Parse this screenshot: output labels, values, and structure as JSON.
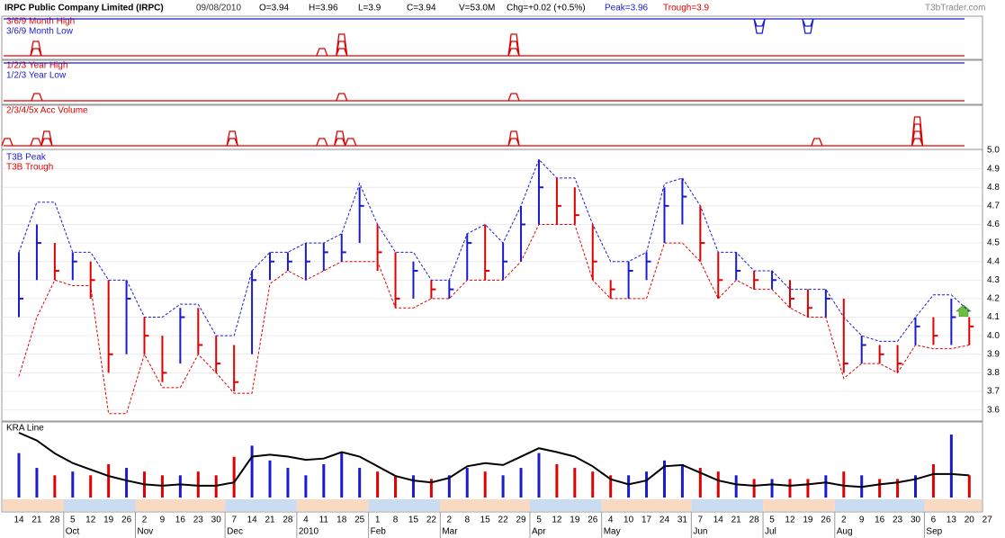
{
  "header": {
    "title": "IRPC Public Company Limited (IRPC)",
    "date": "09/08/2010",
    "open": "O=3.94",
    "high": "H=3.96",
    "low": "L=3.9",
    "close": "C=3.94",
    "volume": "V=53.0M",
    "change": "Chg=+0.02 (+0.5%)",
    "peak": "Peak=3.96",
    "trough": "Trough=3.9",
    "site": "T3bTrader.com"
  },
  "chart_data": [
    {
      "type": "signal",
      "series": [
        {
          "name": "3/6/9 Month High",
          "color": "#e00000",
          "direction": "up",
          "x": [
            0.95,
            16.9,
            18.0,
            27.6
          ],
          "values": [
            2,
            1,
            3,
            3
          ]
        },
        {
          "name": "3/6/9 Month Low",
          "color": "#1a1ad0",
          "direction": "down",
          "x": [
            41.3,
            44.0
          ],
          "values": [
            2,
            2
          ]
        }
      ]
    },
    {
      "type": "signal",
      "series": [
        {
          "name": "1/2/3 Year High",
          "color": "#e00000",
          "direction": "up",
          "x": [
            1.0,
            18.0,
            27.6
          ],
          "values": [
            1,
            1,
            1
          ]
        },
        {
          "name": "1/2/3 Year Low",
          "color": "#1a1ad0",
          "direction": "down",
          "x": [],
          "values": []
        }
      ]
    },
    {
      "type": "signal",
      "series": [
        {
          "name": "2/3/4/5x Acc Volume",
          "color": "#e00000",
          "direction": "up",
          "x": [
            -0.65,
            0.95,
            1.55,
            11.9,
            16.9,
            17.9,
            18.5,
            27.6,
            44.5,
            50.1
          ],
          "values": [
            1,
            1,
            2,
            2,
            1,
            2,
            1,
            2,
            1,
            4
          ]
        }
      ]
    },
    {
      "type": "ohlc",
      "categories": [
        "14",
        "21",
        "28",
        "5",
        "12",
        "19",
        "26",
        "2",
        "9",
        "16",
        "23",
        "30",
        "7",
        "14",
        "21",
        "28",
        "4",
        "11",
        "18",
        "25",
        "1",
        "8",
        "15",
        "22",
        "2",
        "8",
        "15",
        "22",
        "29",
        "5",
        "12",
        "19",
        "26",
        "4",
        "10",
        "17",
        "24",
        "31",
        "7",
        "14",
        "21",
        "28",
        "5",
        "12",
        "19",
        "26",
        "2",
        "9",
        "16",
        "23",
        "30",
        "6",
        "13",
        "20",
        "27"
      ],
      "months": [
        {
          "label": "Oct",
          "start": 3
        },
        {
          "label": "Nov",
          "start": 7
        },
        {
          "label": "Dec",
          "start": 12
        },
        {
          "label": "2010",
          "start": 16
        },
        {
          "label": "Feb",
          "start": 20
        },
        {
          "label": "Mar",
          "start": 24
        },
        {
          "label": "Apr",
          "start": 29
        },
        {
          "label": "May",
          "start": 33
        },
        {
          "label": "Jun",
          "start": 38
        },
        {
          "label": "Jul",
          "start": 42
        },
        {
          "label": "Aug",
          "start": 46
        },
        {
          "label": "Sep",
          "start": 51
        }
      ],
      "high": [
        4.45,
        4.6,
        4.5,
        4.45,
        4.4,
        4.3,
        4.3,
        4.1,
        4.0,
        4.15,
        4.15,
        4.0,
        3.95,
        4.35,
        4.45,
        4.45,
        4.5,
        4.5,
        4.55,
        4.8,
        4.6,
        4.45,
        4.4,
        4.3,
        4.3,
        4.55,
        4.6,
        4.5,
        4.7,
        4.95,
        4.85,
        4.8,
        4.6,
        4.3,
        4.4,
        4.45,
        4.8,
        4.85,
        4.7,
        4.45,
        4.45,
        4.35,
        4.35,
        4.3,
        4.25,
        4.25,
        4.2,
        4.0,
        3.95,
        3.95,
        4.1,
        4.1,
        4.2,
        4.1,
        null
      ],
      "low": [
        4.1,
        4.3,
        4.3,
        4.3,
        4.2,
        3.8,
        3.9,
        3.9,
        3.75,
        3.85,
        3.9,
        3.8,
        3.7,
        3.9,
        4.3,
        4.35,
        4.3,
        4.35,
        4.4,
        4.5,
        4.35,
        4.15,
        4.2,
        4.2,
        4.2,
        4.3,
        4.3,
        4.3,
        4.4,
        4.6,
        4.6,
        4.6,
        4.3,
        4.2,
        4.2,
        4.3,
        4.5,
        4.6,
        4.4,
        4.2,
        4.3,
        4.25,
        4.25,
        4.15,
        4.1,
        4.1,
        3.8,
        3.85,
        3.85,
        3.8,
        3.95,
        3.95,
        3.95,
        3.95,
        null
      ],
      "close": [
        4.2,
        4.5,
        4.35,
        4.4,
        4.3,
        3.9,
        4.2,
        4.0,
        3.8,
        4.1,
        3.95,
        3.85,
        3.75,
        4.3,
        4.4,
        4.4,
        4.4,
        4.45,
        4.45,
        4.7,
        4.45,
        4.2,
        4.35,
        4.25,
        4.25,
        4.5,
        4.35,
        4.4,
        4.6,
        4.8,
        4.7,
        4.65,
        4.4,
        4.25,
        4.35,
        4.4,
        4.7,
        4.75,
        4.5,
        4.3,
        4.35,
        4.3,
        4.3,
        4.2,
        4.15,
        4.2,
        3.85,
        3.95,
        3.9,
        3.85,
        4.05,
        4.0,
        4.1,
        4.05,
        null
      ],
      "up_color": "#1a1ad0",
      "down_color": "#e00000",
      "series": [
        {
          "name": "T3B Peak",
          "color": "#1a1ad0",
          "values": [
            4.45,
            4.72,
            4.72,
            4.45,
            4.45,
            4.3,
            4.3,
            4.1,
            4.1,
            4.17,
            4.17,
            4.0,
            4.0,
            4.35,
            4.45,
            4.45,
            4.5,
            4.5,
            4.55,
            4.82,
            4.6,
            4.45,
            4.45,
            4.3,
            4.3,
            4.55,
            4.6,
            4.5,
            4.7,
            4.95,
            4.85,
            4.85,
            4.6,
            4.4,
            4.4,
            4.45,
            4.82,
            4.85,
            4.7,
            4.45,
            4.45,
            4.35,
            4.35,
            4.25,
            4.25,
            4.25,
            4.1,
            4.0,
            3.97,
            3.97,
            4.1,
            4.22,
            4.22,
            4.13,
            null
          ]
        },
        {
          "name": "T3B Trough",
          "color": "#e00000",
          "values": [
            3.78,
            4.1,
            4.3,
            4.27,
            4.27,
            3.58,
            3.58,
            3.9,
            3.72,
            3.72,
            3.9,
            3.8,
            3.69,
            3.69,
            4.28,
            4.35,
            4.3,
            4.35,
            4.4,
            4.4,
            4.4,
            4.15,
            4.15,
            4.2,
            4.2,
            4.3,
            4.3,
            4.3,
            4.4,
            4.6,
            4.6,
            4.6,
            4.3,
            4.2,
            4.2,
            4.2,
            4.5,
            4.5,
            4.4,
            4.2,
            4.3,
            4.25,
            4.25,
            4.15,
            4.1,
            4.1,
            3.77,
            3.85,
            3.85,
            3.8,
            3.95,
            3.93,
            3.93,
            3.95,
            null
          ]
        }
      ],
      "ylim": [
        3.54,
        5.0
      ],
      "yticks": [
        3.6,
        3.7,
        3.8,
        3.9,
        {
          "value": 4,
          "label": "4.0"
        },
        4.1,
        4.2,
        4.3,
        4.4,
        4.5,
        4.6,
        4.7,
        4.8,
        4.9,
        {
          "value": 5,
          "label": "5.0"
        }
      ],
      "grid": true
    },
    {
      "type": "volume",
      "values": [
        60,
        40,
        30,
        35,
        30,
        45,
        40,
        35,
        30,
        30,
        35,
        30,
        55,
        70,
        50,
        40,
        30,
        45,
        60,
        40,
        35,
        30,
        30,
        25,
        30,
        40,
        35,
        30,
        40,
        60,
        45,
        40,
        35,
        30,
        30,
        35,
        50,
        45,
        40,
        35,
        30,
        25,
        25,
        25,
        25,
        30,
        35,
        30,
        25,
        25,
        30,
        45,
        85,
        30,
        null
      ],
      "line": {
        "name": "KRA Line",
        "color": "#000000",
        "values": [
          92,
          80,
          60,
          45,
          35,
          25,
          18,
          12,
          10,
          12,
          10,
          10,
          15,
          55,
          58,
          55,
          50,
          52,
          62,
          55,
          40,
          25,
          18,
          15,
          22,
          40,
          45,
          42,
          55,
          68,
          62,
          55,
          40,
          20,
          12,
          18,
          40,
          42,
          30,
          18,
          12,
          10,
          12,
          10,
          12,
          15,
          10,
          8,
          12,
          15,
          20,
          28,
          28,
          26,
          null
        ]
      }
    }
  ]
}
